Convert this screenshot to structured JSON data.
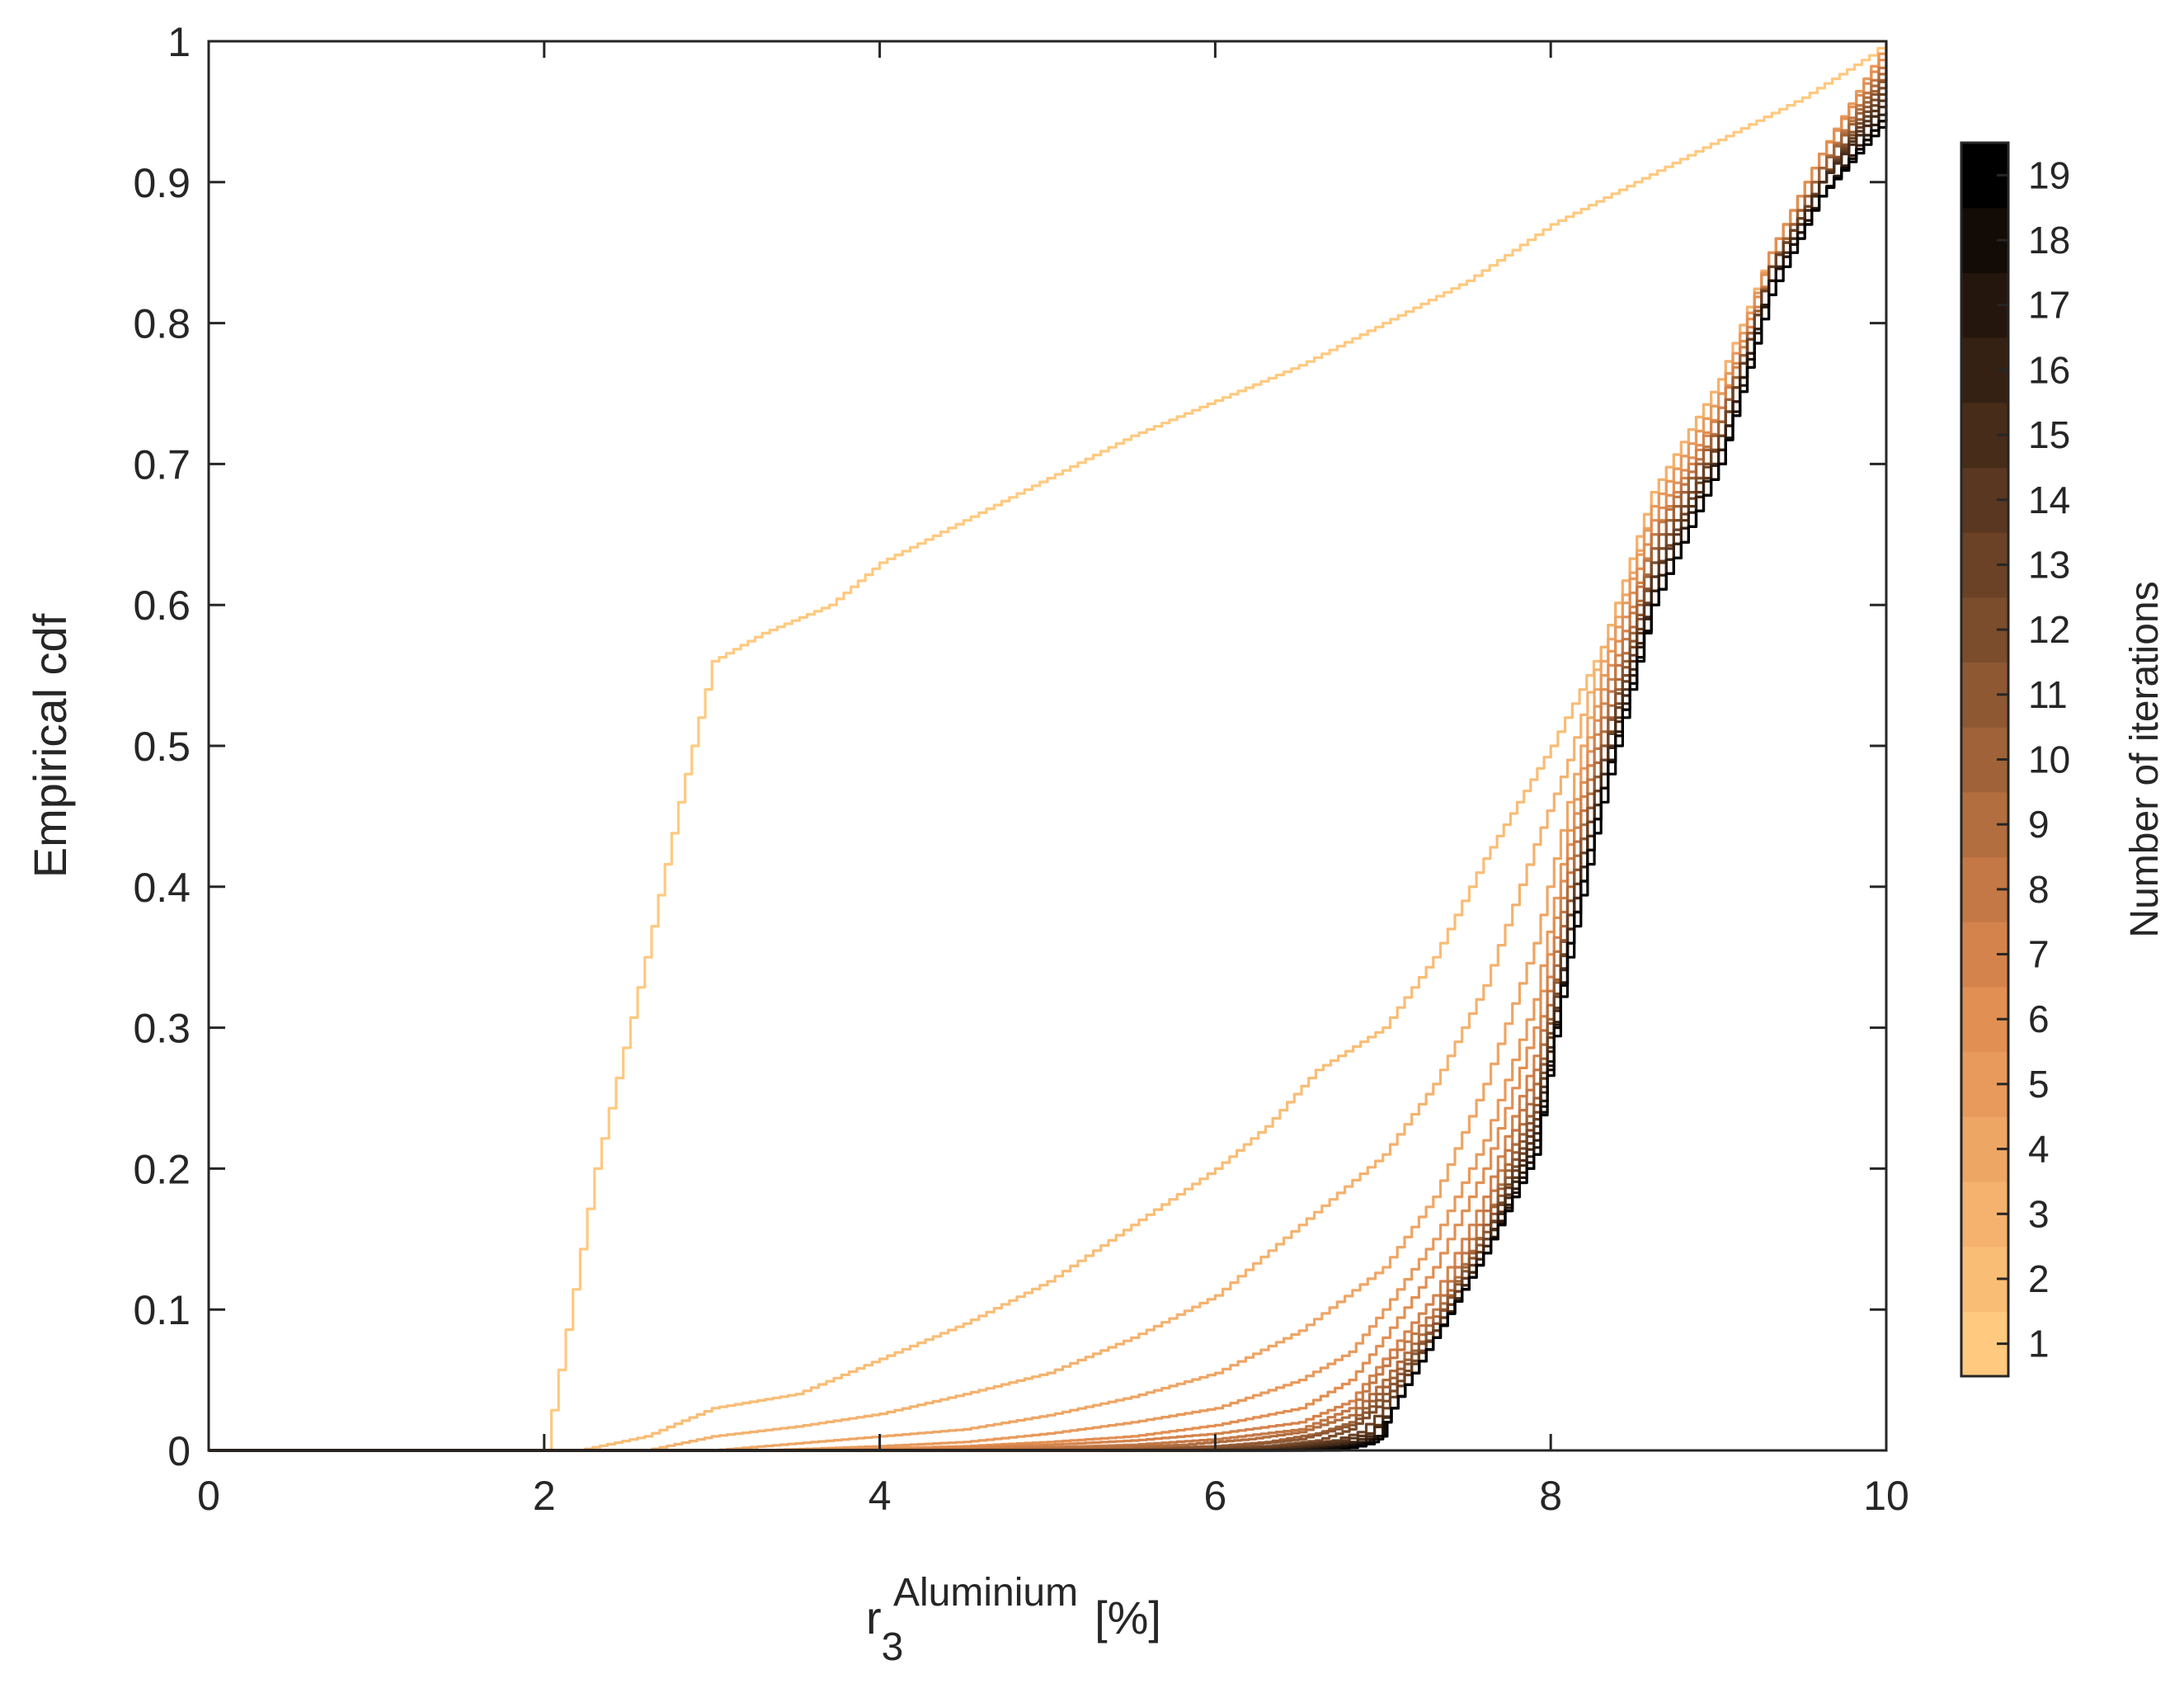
{
  "chart_data": {
    "type": "line",
    "title": "",
    "xlabel": {
      "base": "r",
      "subscript": "3",
      "superscript": "Aluminium",
      "unit": "[%]"
    },
    "ylabel": "Empirical cdf",
    "xlim": [
      0,
      10
    ],
    "ylim": [
      0,
      1
    ],
    "xticks": [
      "0",
      "2",
      "4",
      "6",
      "8",
      "10"
    ],
    "yticks": [
      "0",
      "0.1",
      "0.2",
      "0.3",
      "0.4",
      "0.5",
      "0.6",
      "0.7",
      "0.8",
      "0.9",
      "1"
    ],
    "grid": false,
    "colorbar": {
      "label": "Number of iterations",
      "ticks": [
        "1",
        "2",
        "3",
        "4",
        "5",
        "6",
        "7",
        "8",
        "9",
        "10",
        "11",
        "12",
        "13",
        "14",
        "15",
        "16",
        "17",
        "18",
        "19"
      ],
      "color_low": "#ffc97f",
      "color_mid": "#e08a50",
      "color_high": "#000000"
    },
    "series": [
      {
        "name": "Iteration 1",
        "x": [
          2.0,
          2.3,
          2.6,
          2.8,
          3.0,
          3.3,
          3.7,
          4.0,
          4.5,
          5.0,
          5.5,
          6.0,
          6.5,
          7.0,
          7.5,
          8.0,
          8.5,
          9.0,
          9.5,
          9.9,
          10.0
        ],
        "y": [
          0.0,
          0.2,
          0.35,
          0.46,
          0.56,
          0.58,
          0.6,
          0.63,
          0.66,
          0.69,
          0.72,
          0.745,
          0.77,
          0.8,
          0.83,
          0.87,
          0.9,
          0.93,
          0.96,
          0.99,
          1.0
        ]
      },
      {
        "name": "Iteration 2",
        "x": [
          2.2,
          2.6,
          3.0,
          3.5,
          4.0,
          4.5,
          5.0,
          5.5,
          6.0,
          6.3,
          6.6,
          7.0,
          7.3,
          7.6,
          7.8,
          8.0,
          8.3,
          8.6,
          9.0,
          9.3,
          9.6,
          10.0
        ],
        "y": [
          0.0,
          0.01,
          0.03,
          0.04,
          0.065,
          0.09,
          0.12,
          0.16,
          0.2,
          0.23,
          0.27,
          0.3,
          0.35,
          0.42,
          0.46,
          0.5,
          0.57,
          0.68,
          0.76,
          0.85,
          0.92,
          1.0
        ]
      },
      {
        "name": "Iteration 3",
        "x": [
          2.6,
          3.0,
          3.5,
          4.0,
          4.5,
          5.0,
          5.5,
          6.0,
          6.5,
          7.0,
          7.3,
          7.6,
          7.9,
          8.1,
          8.3,
          8.6,
          9.0,
          9.3,
          9.6,
          10.0
        ],
        "y": [
          0.0,
          0.01,
          0.017,
          0.026,
          0.04,
          0.055,
          0.08,
          0.11,
          0.16,
          0.21,
          0.26,
          0.33,
          0.43,
          0.49,
          0.57,
          0.68,
          0.76,
          0.85,
          0.92,
          1.0
        ]
      },
      {
        "name": "Iteration 4",
        "x": [
          3.0,
          3.5,
          4.0,
          4.5,
          5.0,
          5.5,
          6.0,
          6.5,
          7.0,
          7.3,
          7.6,
          7.9,
          8.1,
          8.3,
          8.6,
          9.0,
          9.3,
          9.6,
          10.0
        ],
        "y": [
          0.0,
          0.005,
          0.01,
          0.015,
          0.025,
          0.038,
          0.055,
          0.085,
          0.13,
          0.18,
          0.26,
          0.36,
          0.46,
          0.56,
          0.67,
          0.75,
          0.85,
          0.92,
          1.0
        ]
      },
      {
        "name": "Iteration 5",
        "x": [
          3.3,
          4.0,
          4.5,
          5.0,
          5.5,
          6.0,
          6.5,
          6.8,
          7.0,
          7.3,
          7.6,
          7.9,
          8.1,
          8.3,
          8.6,
          9.0,
          9.3,
          9.6,
          10.0
        ],
        "y": [
          0.0,
          0.003,
          0.006,
          0.012,
          0.02,
          0.03,
          0.05,
          0.07,
          0.1,
          0.15,
          0.22,
          0.32,
          0.44,
          0.55,
          0.67,
          0.75,
          0.85,
          0.92,
          1.0
        ]
      },
      {
        "name": "Iteration 6",
        "x": [
          3.6,
          4.5,
          5.0,
          5.5,
          6.0,
          6.5,
          6.8,
          7.0,
          7.3,
          7.6,
          7.9,
          8.1,
          8.3,
          8.6,
          9.0,
          9.3,
          9.6,
          10.0
        ],
        "y": [
          0.0,
          0.003,
          0.006,
          0.01,
          0.018,
          0.03,
          0.05,
          0.08,
          0.13,
          0.2,
          0.3,
          0.43,
          0.54,
          0.66,
          0.74,
          0.85,
          0.92,
          0.995
        ]
      },
      {
        "name": "Iteration 7",
        "x": [
          4.0,
          5.0,
          5.5,
          6.0,
          6.5,
          6.8,
          7.0,
          7.3,
          7.6,
          7.9,
          8.1,
          8.3,
          8.6,
          9.0,
          9.3,
          9.6,
          10.0
        ],
        "y": [
          0.0,
          0.004,
          0.007,
          0.012,
          0.02,
          0.035,
          0.065,
          0.11,
          0.18,
          0.28,
          0.42,
          0.53,
          0.65,
          0.74,
          0.84,
          0.91,
          0.99
        ]
      },
      {
        "name": "Iteration 8",
        "x": [
          4.4,
          5.5,
          6.0,
          6.5,
          6.8,
          7.0,
          7.3,
          7.6,
          7.9,
          8.1,
          8.3,
          8.6,
          9.0,
          9.3,
          9.6,
          10.0
        ],
        "y": [
          0.0,
          0.004,
          0.008,
          0.015,
          0.03,
          0.06,
          0.1,
          0.17,
          0.27,
          0.41,
          0.52,
          0.65,
          0.73,
          0.84,
          0.91,
          0.99
        ]
      },
      {
        "name": "Iteration 9",
        "x": [
          4.8,
          5.8,
          6.2,
          6.5,
          6.8,
          7.0,
          7.3,
          7.6,
          7.9,
          8.1,
          8.3,
          8.6,
          9.0,
          9.3,
          9.6,
          10.0
        ],
        "y": [
          0.0,
          0.004,
          0.008,
          0.013,
          0.025,
          0.05,
          0.095,
          0.16,
          0.26,
          0.4,
          0.51,
          0.64,
          0.73,
          0.84,
          0.91,
          0.985
        ]
      },
      {
        "name": "Iteration 10",
        "x": [
          5.2,
          6.0,
          6.3,
          6.6,
          6.8,
          7.0,
          7.3,
          7.6,
          7.9,
          8.1,
          8.3,
          8.6,
          9.0,
          9.3,
          9.6,
          10.0
        ],
        "y": [
          0.0,
          0.003,
          0.006,
          0.012,
          0.02,
          0.045,
          0.09,
          0.16,
          0.25,
          0.39,
          0.5,
          0.64,
          0.73,
          0.84,
          0.91,
          0.98
        ]
      },
      {
        "name": "Iteration 11",
        "x": [
          5.5,
          6.2,
          6.5,
          6.8,
          7.0,
          7.3,
          7.6,
          7.9,
          8.1,
          8.3,
          8.6,
          9.0,
          9.3,
          9.6,
          10.0
        ],
        "y": [
          0.0,
          0.004,
          0.008,
          0.018,
          0.04,
          0.09,
          0.155,
          0.245,
          0.39,
          0.5,
          0.63,
          0.72,
          0.84,
          0.9,
          0.98
        ]
      },
      {
        "name": "Iteration 12",
        "x": [
          5.8,
          6.3,
          6.6,
          6.8,
          7.0,
          7.3,
          7.6,
          7.9,
          8.1,
          8.3,
          8.6,
          9.0,
          9.3,
          9.6,
          10.0
        ],
        "y": [
          0.0,
          0.003,
          0.007,
          0.015,
          0.035,
          0.085,
          0.15,
          0.24,
          0.38,
          0.49,
          0.63,
          0.72,
          0.84,
          0.9,
          0.975
        ]
      },
      {
        "name": "Iteration 13",
        "x": [
          6.0,
          6.4,
          6.7,
          6.85,
          7.0,
          7.3,
          7.6,
          7.9,
          8.1,
          8.3,
          8.6,
          9.0,
          9.3,
          9.6,
          10.0
        ],
        "y": [
          0.0,
          0.003,
          0.007,
          0.013,
          0.03,
          0.085,
          0.15,
          0.235,
          0.38,
          0.49,
          0.62,
          0.72,
          0.84,
          0.9,
          0.97
        ]
      },
      {
        "name": "Iteration 14",
        "x": [
          6.2,
          6.5,
          6.75,
          6.9,
          7.05,
          7.3,
          7.6,
          7.9,
          8.1,
          8.3,
          8.6,
          9.0,
          9.3,
          9.6,
          10.0
        ],
        "y": [
          0.0,
          0.003,
          0.007,
          0.012,
          0.03,
          0.08,
          0.145,
          0.23,
          0.37,
          0.48,
          0.62,
          0.71,
          0.83,
          0.9,
          0.965
        ]
      },
      {
        "name": "Iteration 15",
        "x": [
          6.3,
          6.6,
          6.8,
          6.9,
          7.05,
          7.3,
          7.6,
          7.9,
          8.1,
          8.3,
          8.6,
          9.0,
          9.3,
          9.6,
          10.0
        ],
        "y": [
          0.0,
          0.003,
          0.006,
          0.01,
          0.03,
          0.08,
          0.145,
          0.225,
          0.37,
          0.48,
          0.61,
          0.71,
          0.83,
          0.9,
          0.96
        ]
      },
      {
        "name": "Iteration 16",
        "x": [
          6.4,
          6.7,
          6.85,
          6.95,
          7.05,
          7.3,
          7.6,
          7.9,
          8.1,
          8.3,
          8.6,
          9.0,
          9.3,
          9.6,
          10.0
        ],
        "y": [
          0.0,
          0.003,
          0.006,
          0.01,
          0.03,
          0.08,
          0.14,
          0.22,
          0.36,
          0.47,
          0.61,
          0.71,
          0.83,
          0.89,
          0.955
        ]
      },
      {
        "name": "Iteration 17",
        "x": [
          6.5,
          6.75,
          6.9,
          6.95,
          7.05,
          7.3,
          7.6,
          7.9,
          8.1,
          8.3,
          8.6,
          9.0,
          9.3,
          9.6,
          10.0
        ],
        "y": [
          0.0,
          0.003,
          0.006,
          0.01,
          0.03,
          0.08,
          0.14,
          0.215,
          0.36,
          0.47,
          0.6,
          0.7,
          0.83,
          0.89,
          0.95
        ]
      },
      {
        "name": "Iteration 18",
        "x": [
          6.6,
          6.8,
          6.92,
          6.97,
          7.05,
          7.3,
          7.6,
          7.9,
          8.1,
          8.3,
          8.6,
          9.0,
          9.3,
          9.6,
          10.0
        ],
        "y": [
          0.0,
          0.003,
          0.006,
          0.01,
          0.03,
          0.08,
          0.14,
          0.21,
          0.36,
          0.47,
          0.6,
          0.7,
          0.82,
          0.89,
          0.95
        ]
      },
      {
        "name": "Iteration 19",
        "x": [
          6.7,
          6.85,
          6.95,
          7.0,
          7.05,
          7.3,
          7.6,
          7.9,
          8.1,
          8.3,
          8.6,
          9.0,
          9.3,
          9.6,
          10.0
        ],
        "y": [
          0.0,
          0.003,
          0.006,
          0.01,
          0.03,
          0.08,
          0.14,
          0.21,
          0.35,
          0.46,
          0.6,
          0.7,
          0.82,
          0.89,
          0.945
        ]
      }
    ]
  }
}
